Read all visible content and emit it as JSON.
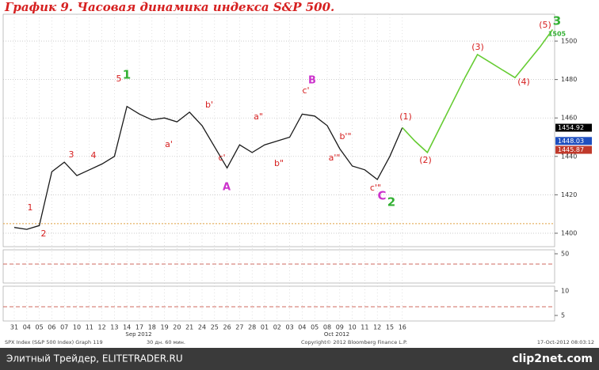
{
  "chart_data": {
    "type": "line",
    "title": "График 9.   Часовая динамика индекса S&P 500.",
    "categories": [
      "31",
      "04",
      "05",
      "06",
      "07",
      "10",
      "11",
      "12",
      "13",
      "14",
      "17",
      "18",
      "19",
      "20",
      "21",
      "24",
      "25",
      "26",
      "27",
      "28",
      "01",
      "02",
      "03",
      "04",
      "05",
      "08",
      "09",
      "10",
      "11",
      "12",
      "15",
      "16",
      null,
      null,
      null,
      null,
      null,
      null,
      null,
      null,
      null,
      null,
      null,
      null
    ],
    "month_labels": [
      "Sep 2012",
      "Oct 2012"
    ],
    "series": [
      {
        "color": "#1a1a1a",
        "values": [
          1403,
          1402,
          1404,
          1432,
          1437,
          1430,
          1433,
          1436,
          1440,
          1466,
          1462,
          1459,
          1460,
          1458,
          1463,
          1456,
          1445,
          1434,
          1446,
          1442,
          1446,
          1448,
          1450,
          1462,
          1461,
          1456,
          1444,
          1435,
          1433,
          1428,
          1440,
          1455,
          null,
          null,
          null,
          null,
          null,
          null,
          null,
          null,
          null,
          null,
          null,
          null
        ]
      },
      {
        "color": "#66cc33",
        "values": [
          null,
          null,
          null,
          null,
          null,
          null,
          null,
          null,
          null,
          null,
          null,
          null,
          null,
          null,
          null,
          null,
          null,
          null,
          null,
          null,
          null,
          null,
          null,
          null,
          null,
          null,
          null,
          null,
          null,
          null,
          null,
          1455,
          1448,
          1442,
          1455,
          1468,
          1481,
          1493,
          1489,
          1485,
          1481,
          1489,
          1497,
          1506
        ]
      }
    ],
    "ylim": [
      1393,
      1514
    ],
    "yticks": [
      1400,
      1420,
      1440,
      1460,
      1480,
      1500
    ],
    "grid": true,
    "reference_line": {
      "value": 1405,
      "color": "#e0a040"
    },
    "price_labels": [
      {
        "value": 1454.92,
        "color": "#000000"
      },
      {
        "value": 1448.03,
        "color": "#1f4fbf"
      },
      {
        "value": 1445.87,
        "color": "#c0392b"
      }
    ],
    "annotations": [
      {
        "text": "1",
        "color": "#d62020"
      },
      {
        "text": "2",
        "color": "#d62020"
      },
      {
        "text": "3",
        "color": "#d62020"
      },
      {
        "text": "4",
        "color": "#d62020"
      },
      {
        "text": "5",
        "color": "#d62020"
      },
      {
        "text": "1",
        "color": "#33b033"
      },
      {
        "text": "a'",
        "color": "#d62020"
      },
      {
        "text": "b'",
        "color": "#d62020"
      },
      {
        "text": "c'",
        "color": "#d62020"
      },
      {
        "text": "A",
        "color": "#cc33cc"
      },
      {
        "text": "a\"",
        "color": "#d62020"
      },
      {
        "text": "b\"",
        "color": "#d62020"
      },
      {
        "text": "c'",
        "color": "#d62020"
      },
      {
        "text": "B",
        "color": "#cc33cc"
      },
      {
        "text": "a'\"",
        "color": "#d62020"
      },
      {
        "text": "b'\"",
        "color": "#d62020"
      },
      {
        "text": "c'\"",
        "color": "#d62020"
      },
      {
        "text": "C",
        "color": "#cc33cc"
      },
      {
        "text": "2",
        "color": "#33b033"
      },
      {
        "text": "(1)",
        "color": "#d62020"
      },
      {
        "text": "(2)",
        "color": "#d62020"
      },
      {
        "text": "(3)",
        "color": "#d62020"
      },
      {
        "text": "(4)",
        "color": "#d62020"
      },
      {
        "text": "(5)",
        "color": "#d62020"
      },
      {
        "text": "3",
        "color": "#33b033"
      },
      {
        "text": "1505",
        "color": "#33b033"
      }
    ],
    "panels": [
      {
        "yticks": [
          50
        ]
      },
      {
        "yticks": [
          10,
          5
        ]
      }
    ],
    "footer": [
      "SPX Index (S&P 500 Index) Graph 119",
      "30 дн. 60 мин.",
      "Copyright© 2012 Bloomberg Finance L.P.",
      "17-Oct-2012 08:03:12"
    ]
  },
  "watermark": {
    "left": "Элитный Трейдер, ELITETRADER.RU",
    "right": "clip2net.com"
  }
}
